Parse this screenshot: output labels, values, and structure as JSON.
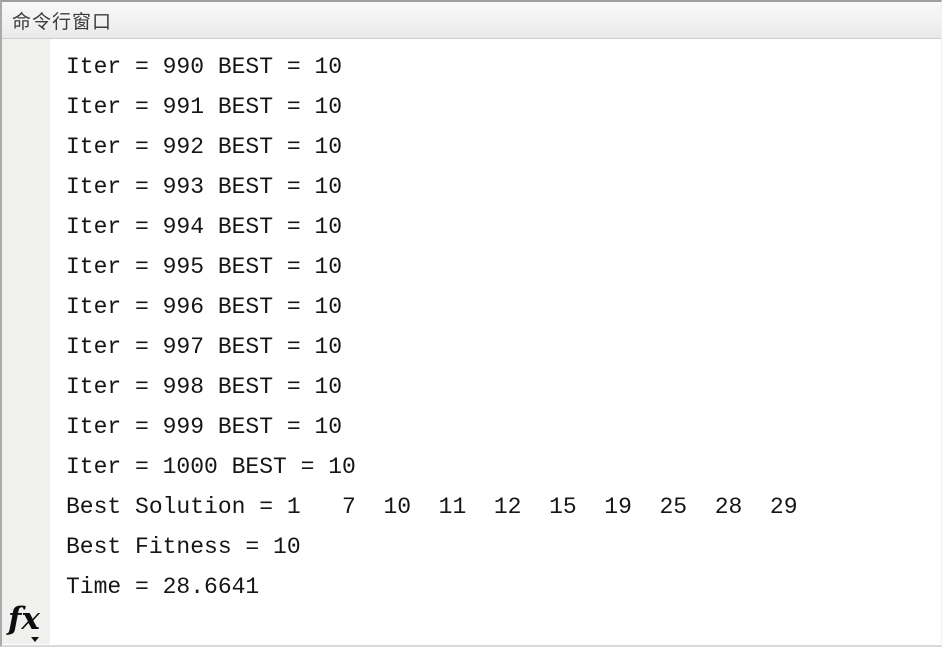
{
  "window": {
    "title": "命令行窗口"
  },
  "console": {
    "lines": [
      "Iter = 990 BEST = 10",
      "Iter = 991 BEST = 10",
      "Iter = 992 BEST = 10",
      "Iter = 993 BEST = 10",
      "Iter = 994 BEST = 10",
      "Iter = 995 BEST = 10",
      "Iter = 996 BEST = 10",
      "Iter = 997 BEST = 10",
      "Iter = 998 BEST = 10",
      "Iter = 999 BEST = 10",
      "Iter = 1000 BEST = 10",
      "Best Solution = 1   7  10  11  12  15  19  25  28  29",
      "Best Fitness = 10",
      "Time = 28.6641"
    ],
    "final_iteration": 1000,
    "best_solution": [
      1,
      7,
      10,
      11,
      12,
      15,
      19,
      25,
      28,
      29
    ],
    "best_fitness": 10,
    "time_seconds": 28.6641
  },
  "fx_button": {
    "label": "fx"
  },
  "colors": {
    "titlebar_text": "#3d3d3d",
    "titlebar_gradient_top": "#f9f9f9",
    "titlebar_gradient_bottom": "#e9e9e9",
    "console_text": "#161616",
    "gutter_background": "#f0f0ee",
    "console_background": "#ffffff"
  }
}
